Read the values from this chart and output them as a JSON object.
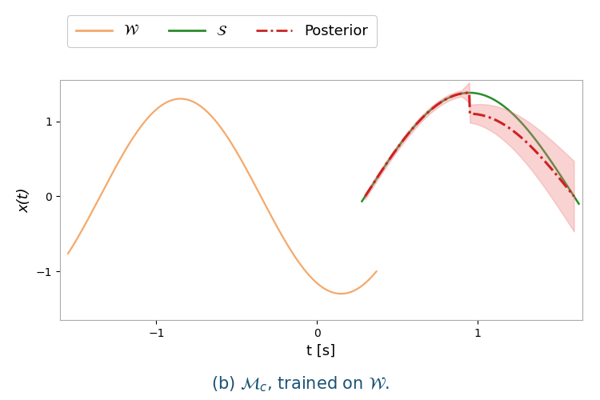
{
  "xlabel": "t [s]",
  "ylabel": "x(t)",
  "xlim": [
    -1.6,
    1.65
  ],
  "ylim": [
    -1.65,
    1.55
  ],
  "yticks": [
    -1,
    0,
    1
  ],
  "xticks": [
    -1,
    0,
    1
  ],
  "w_color": "#f5a96a",
  "s_color": "#2a8c2a",
  "post_color": "#cc2222",
  "post_fill_color": "#f08080",
  "legend_labels": [
    "$\\mathcal{W}$",
    "$\\mathcal{S}$",
    "Posterior"
  ],
  "caption": "(b) $\\mathcal{M}_c$, trained on $\\mathcal{W}$.",
  "caption_color": "#1a5276",
  "caption_fontsize": 15,
  "bg_color": "#ffffff",
  "plot_bg": "#ffffff",
  "spine_color": "#aaaaaa"
}
